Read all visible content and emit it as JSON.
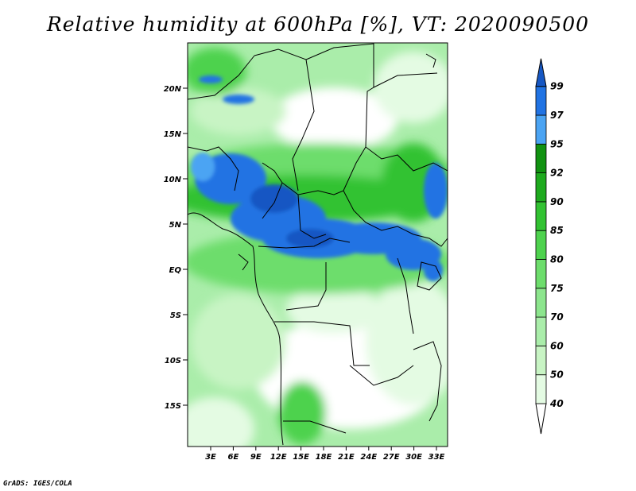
{
  "title": "Relative humidity at 600hPa [%], VT: 2020090500",
  "credit": "GrADS: IGES/COLA",
  "lat_labels": [
    "20N",
    "15N",
    "10N",
    "5N",
    "EQ",
    "5S",
    "10S",
    "15S"
  ],
  "lon_labels": [
    "3E",
    "6E",
    "9E",
    "12E",
    "15E",
    "18E",
    "21E",
    "24E",
    "27E",
    "30E",
    "33E"
  ],
  "colorbar": {
    "levels": [
      "40",
      "50",
      "60",
      "70",
      "75",
      "80",
      "85",
      "90",
      "92",
      "95",
      "97",
      "99"
    ],
    "colors": [
      "#ffffff",
      "#e4fbe3",
      "#c8f4c4",
      "#aaedaa",
      "#8ce58d",
      "#6ddd6c",
      "#4ed24e",
      "#32c232",
      "#1eaa1e",
      "#119211",
      "#4ba4f3",
      "#2173e3",
      "#1657c3"
    ]
  },
  "region": {
    "lon_min": 0,
    "lon_max": 35,
    "lat_min": -20,
    "lat_max": 24
  }
}
